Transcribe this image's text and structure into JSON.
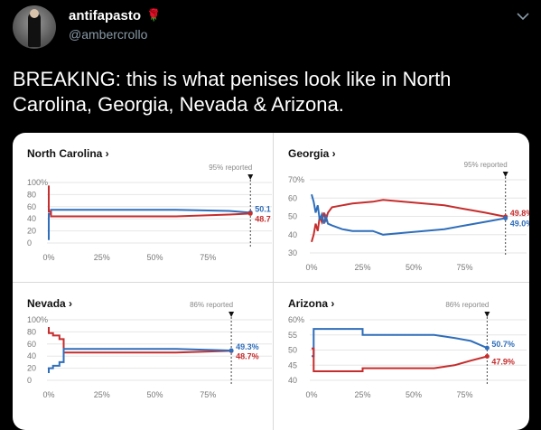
{
  "tweet": {
    "display_name": "antifapasto",
    "handle": "@ambercrollo",
    "text": "BREAKING: this is what penises look like in North Carolina, Georgia, Nevada & Arizona.",
    "emoji_icon": "rose-icon"
  },
  "colors": {
    "blue": "#2f6eba",
    "red": "#c62d2d",
    "grid": "#e6e6e6"
  },
  "chart_data": [
    {
      "type": "line",
      "title": "North Carolina ›",
      "reported_label": "95% reported",
      "reported_x": 0.95,
      "ylim": [
        0,
        100
      ],
      "y_ticks": [
        "100%",
        "80",
        "60",
        "40",
        "20",
        "0"
      ],
      "y_tick_values": [
        100,
        80,
        60,
        40,
        20,
        0
      ],
      "x_ticks": [
        "0%",
        "25%",
        "50%",
        "75%"
      ],
      "x_tick_values": [
        0,
        0.25,
        0.5,
        0.75
      ],
      "series": [
        {
          "color": "blue",
          "end_label": "50.1",
          "points": [
            [
              0,
              5
            ],
            [
              0,
              48
            ],
            [
              0.01,
              48
            ],
            [
              0.01,
              55
            ],
            [
              0.6,
              55
            ],
            [
              0.85,
              53
            ],
            [
              0.95,
              50.1
            ]
          ]
        },
        {
          "color": "red",
          "end_label": "48.7",
          "points": [
            [
              0,
              95
            ],
            [
              0,
              52
            ],
            [
              0.01,
              52
            ],
            [
              0.01,
              44
            ],
            [
              0.6,
              44
            ],
            [
              0.85,
              47
            ],
            [
              0.95,
              48.7
            ]
          ]
        }
      ]
    },
    {
      "type": "line",
      "title": "Georgia ›",
      "reported_label": "95% reported",
      "reported_x": 0.95,
      "ylim": [
        30,
        70
      ],
      "y_ticks": [
        "70%",
        "60",
        "50",
        "40",
        "30"
      ],
      "y_tick_values": [
        70,
        60,
        50,
        40,
        30
      ],
      "x_ticks": [
        "0%",
        "25%",
        "50%",
        "75%"
      ],
      "x_tick_values": [
        0,
        0.25,
        0.5,
        0.75
      ],
      "series": [
        {
          "color": "red",
          "end_label": "49.8%",
          "points": [
            [
              0,
              36
            ],
            [
              0.01,
              40
            ],
            [
              0.02,
              46
            ],
            [
              0.03,
              42
            ],
            [
              0.04,
              50
            ],
            [
              0.05,
              47
            ],
            [
              0.06,
              52
            ],
            [
              0.07,
              48
            ],
            [
              0.08,
              52
            ],
            [
              0.1,
              55
            ],
            [
              0.15,
              56
            ],
            [
              0.2,
              57
            ],
            [
              0.3,
              58
            ],
            [
              0.35,
              59
            ],
            [
              0.45,
              58
            ],
            [
              0.55,
              57
            ],
            [
              0.65,
              56
            ],
            [
              0.75,
              54
            ],
            [
              0.85,
              52
            ],
            [
              0.95,
              49.8
            ]
          ]
        },
        {
          "color": "blue",
          "end_label": "49.0%",
          "points": [
            [
              0,
              62
            ],
            [
              0.01,
              58
            ],
            [
              0.02,
              52
            ],
            [
              0.03,
              56
            ],
            [
              0.04,
              48
            ],
            [
              0.05,
              51
            ],
            [
              0.06,
              46
            ],
            [
              0.07,
              50
            ],
            [
              0.08,
              46
            ],
            [
              0.1,
              45
            ],
            [
              0.15,
              43
            ],
            [
              0.2,
              42
            ],
            [
              0.3,
              42
            ],
            [
              0.35,
              40
            ],
            [
              0.45,
              41
            ],
            [
              0.55,
              42
            ],
            [
              0.65,
              43
            ],
            [
              0.75,
              45
            ],
            [
              0.85,
              47
            ],
            [
              0.95,
              49.0
            ]
          ]
        }
      ]
    },
    {
      "type": "line",
      "title": "Nevada ›",
      "reported_label": "86% reported",
      "reported_x": 0.86,
      "ylim": [
        0,
        100
      ],
      "y_ticks": [
        "100%",
        "80",
        "60",
        "40",
        "20",
        "0"
      ],
      "y_tick_values": [
        100,
        80,
        60,
        40,
        20,
        0
      ],
      "x_ticks": [
        "0%",
        "25%",
        "50%",
        "75%"
      ],
      "x_tick_values": [
        0,
        0.25,
        0.5,
        0.75
      ],
      "series": [
        {
          "color": "red",
          "end_label": "48.7%",
          "points": [
            [
              0,
              88
            ],
            [
              0,
              78
            ],
            [
              0.02,
              78
            ],
            [
              0.02,
              74
            ],
            [
              0.05,
              74
            ],
            [
              0.05,
              68
            ],
            [
              0.07,
              68
            ],
            [
              0.07,
              46
            ],
            [
              0.6,
              46
            ],
            [
              0.86,
              48.7
            ]
          ]
        },
        {
          "color": "blue",
          "end_label": "49.3%",
          "points": [
            [
              0,
              12
            ],
            [
              0,
              20
            ],
            [
              0.02,
              20
            ],
            [
              0.02,
              24
            ],
            [
              0.05,
              24
            ],
            [
              0.05,
              30
            ],
            [
              0.07,
              30
            ],
            [
              0.07,
              52
            ],
            [
              0.6,
              52
            ],
            [
              0.86,
              49.3
            ]
          ]
        }
      ]
    },
    {
      "type": "line",
      "title": "Arizona ›",
      "reported_label": "86% reported",
      "reported_x": 0.86,
      "ylim": [
        40,
        60
      ],
      "y_ticks": [
        "60%",
        "55",
        "50",
        "45",
        "40"
      ],
      "y_tick_values": [
        60,
        55,
        50,
        45,
        40
      ],
      "x_ticks": [
        "0%",
        "25%",
        "50%",
        "75%"
      ],
      "x_tick_values": [
        0,
        0.25,
        0.5,
        0.75
      ],
      "series": [
        {
          "color": "blue",
          "end_label": "50.7%",
          "points": [
            [
              0,
              48
            ],
            [
              0.01,
              48
            ],
            [
              0.01,
              57
            ],
            [
              0.25,
              57
            ],
            [
              0.25,
              55
            ],
            [
              0.6,
              55
            ],
            [
              0.7,
              54
            ],
            [
              0.78,
              53
            ],
            [
              0.86,
              50.7
            ]
          ]
        },
        {
          "color": "red",
          "end_label": "47.9%",
          "points": [
            [
              0,
              50.5
            ],
            [
              0.01,
              50.5
            ],
            [
              0.01,
              43
            ],
            [
              0.25,
              43
            ],
            [
              0.25,
              44
            ],
            [
              0.6,
              44
            ],
            [
              0.7,
              45
            ],
            [
              0.78,
              46.5
            ],
            [
              0.86,
              47.9
            ]
          ]
        }
      ]
    }
  ]
}
